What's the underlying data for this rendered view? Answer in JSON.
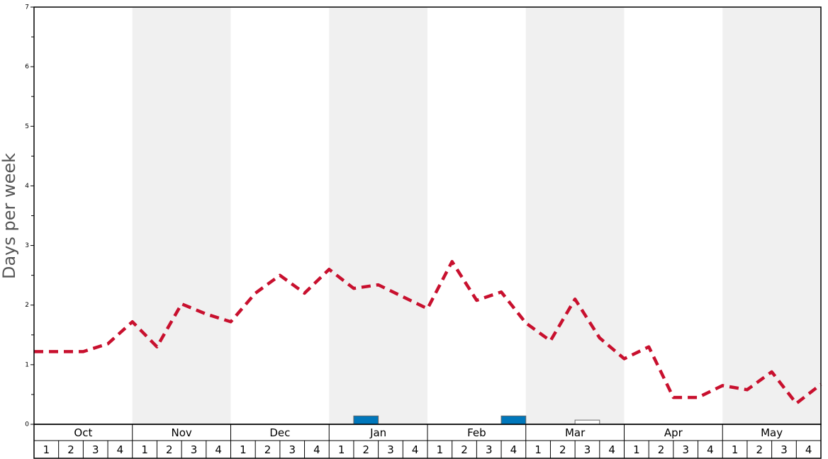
{
  "chart_data": {
    "type": "line",
    "y_label": "Days per week",
    "ylim": [
      0,
      7
    ],
    "yticks": [
      0,
      1,
      2,
      3,
      4,
      5,
      6,
      7
    ],
    "yminorticks": [
      0.5,
      1.5,
      2.5,
      3.5,
      4.5,
      5.5,
      6.5
    ],
    "months": [
      {
        "name": "Oct",
        "weeks": [
          1,
          2,
          3,
          4
        ]
      },
      {
        "name": "Nov",
        "weeks": [
          1,
          2,
          3,
          4
        ]
      },
      {
        "name": "Dec",
        "weeks": [
          1,
          2,
          3,
          4
        ]
      },
      {
        "name": "Jan",
        "weeks": [
          1,
          2,
          3,
          4
        ]
      },
      {
        "name": "Feb",
        "weeks": [
          1,
          2,
          3,
          4
        ]
      },
      {
        "name": "Mar",
        "weeks": [
          1,
          2,
          3,
          4
        ]
      },
      {
        "name": "Apr",
        "weeks": [
          1,
          2,
          3,
          4
        ]
      },
      {
        "name": "May",
        "weeks": [
          1,
          2,
          3,
          4
        ]
      }
    ],
    "line": {
      "color": "#c8102e",
      "values": [
        1.22,
        1.22,
        1.22,
        1.35,
        1.72,
        1.3,
        2.02,
        1.85,
        1.72,
        2.2,
        2.5,
        2.2,
        2.6,
        2.28,
        2.34,
        2.14,
        1.94,
        2.73,
        2.08,
        2.22,
        1.7,
        1.4,
        2.1,
        1.45,
        1.1,
        1.3,
        0.45,
        0.45,
        0.65,
        0.58,
        0.88,
        0.35,
        0.67
      ]
    },
    "bars": {
      "values": [
        null,
        null,
        null,
        null,
        null,
        null,
        null,
        null,
        null,
        null,
        null,
        null,
        null,
        0.14,
        null,
        null,
        null,
        null,
        null,
        0.14,
        null,
        null,
        0.07,
        null,
        null,
        null,
        null,
        null,
        null,
        null,
        null,
        null
      ],
      "colors": [
        null,
        null,
        null,
        null,
        null,
        null,
        null,
        null,
        null,
        null,
        null,
        null,
        null,
        "#0077bb",
        null,
        null,
        null,
        null,
        null,
        "#0077bb",
        null,
        null,
        "#ffffff",
        null,
        null,
        null,
        null,
        null,
        null,
        null,
        null,
        null
      ]
    },
    "shade_color": "#f0f0f0"
  }
}
